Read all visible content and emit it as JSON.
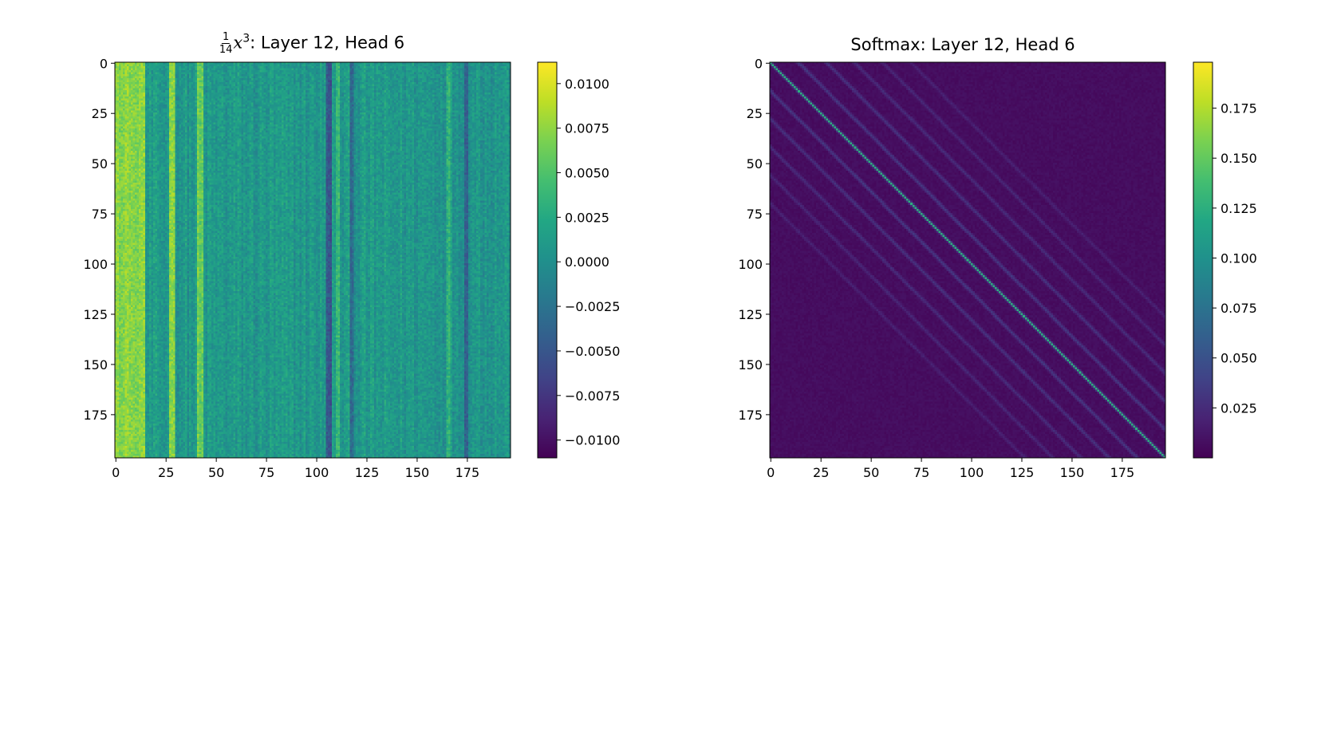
{
  "chart_data": [
    {
      "type": "heatmap",
      "title": {
        "frac_num": "1",
        "frac_den": "14",
        "var": "x",
        "exp": "3",
        "rest": ": Layer 12, Head 6"
      },
      "n": 197,
      "xlim": [
        0,
        197
      ],
      "ylim": [
        197,
        0
      ],
      "xticks": [
        0,
        25,
        50,
        75,
        100,
        125,
        150,
        175
      ],
      "yticks": [
        0,
        25,
        50,
        75,
        100,
        125,
        150,
        175
      ],
      "colormap": "viridis",
      "vmin": -0.011,
      "vmax": 0.0112,
      "colorbar_ticks": [
        0.01,
        0.0075,
        0.005,
        0.0025,
        0.0,
        -0.0025,
        -0.005,
        -0.0075,
        -0.01
      ],
      "colorbar_labels": [
        "0.0100",
        "0.0075",
        "0.0050",
        "0.0025",
        "0.0000",
        "−0.0025",
        "−0.0050",
        "−0.0075",
        "−0.0100"
      ],
      "pattern": "column-dominant",
      "column_features": [
        {
          "col_from": 0,
          "col_to": 14,
          "value": 0.0072
        },
        {
          "col_from": 27,
          "col_to": 29,
          "value": 0.0075
        },
        {
          "col_from": 41,
          "col_to": 43,
          "value": 0.0062
        },
        {
          "col_from": 105,
          "col_to": 107,
          "value": -0.0052
        },
        {
          "col_from": 110,
          "col_to": 111,
          "value": 0.0038
        },
        {
          "col_from": 117,
          "col_to": 118,
          "value": -0.0035
        },
        {
          "col_from": 165,
          "col_to": 166,
          "value": 0.0032
        },
        {
          "col_from": 174,
          "col_to": 175,
          "value": -0.0042
        }
      ],
      "background_value": 0.0008
    },
    {
      "type": "heatmap",
      "title": "Softmax: Layer 12, Head 6",
      "n": 197,
      "xlim": [
        0,
        197
      ],
      "ylim": [
        197,
        0
      ],
      "xticks": [
        0,
        25,
        50,
        75,
        100,
        125,
        150,
        175
      ],
      "yticks": [
        0,
        25,
        50,
        75,
        100,
        125,
        150,
        175
      ],
      "colormap": "viridis",
      "vmin": 0.0,
      "vmax": 0.198,
      "colorbar_ticks": [
        0.175,
        0.15,
        0.125,
        0.1,
        0.075,
        0.05,
        0.025
      ],
      "colorbar_labels": [
        "0.175",
        "0.150",
        "0.125",
        "0.100",
        "0.075",
        "0.050",
        "0.025"
      ],
      "pattern": "diagonal-banded",
      "diagonal_value": 0.125,
      "off_diagonal_band_offsets": [
        14,
        28,
        42,
        56,
        70
      ],
      "band_value": 0.028,
      "background_value": 0.004
    }
  ]
}
